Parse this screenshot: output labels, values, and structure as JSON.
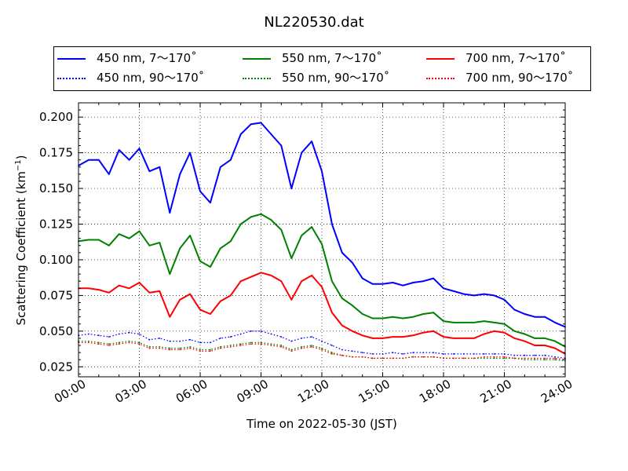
{
  "chart_data": {
    "type": "line",
    "title": "NL220530.dat",
    "xlabel": "Time on 2022-05-30 (JST)",
    "ylabel_main": "Scattering Coefficient (km",
    "ylabel_sup": "−1",
    "ylabel_tail": ")",
    "xlim": [
      "2022-05-30 00:00",
      "2022-05-31 00:00"
    ],
    "ylim": [
      0.018,
      0.21
    ],
    "xticks": [
      "00:00",
      "03:00",
      "06:00",
      "09:00",
      "12:00",
      "15:00",
      "18:00",
      "21:00",
      "24:00"
    ],
    "xtick_hours": [
      0,
      3,
      6,
      9,
      12,
      15,
      18,
      21,
      24
    ],
    "yticks": [
      0.025,
      0.05,
      0.075,
      0.1,
      0.125,
      0.15,
      0.175,
      0.2
    ],
    "ytick_labels": [
      "0.025",
      "0.050",
      "0.075",
      "0.100",
      "0.125",
      "0.150",
      "0.175",
      "0.200"
    ],
    "grid": true,
    "legend_position": "top, outside, 3 columns",
    "x_hours": [
      0,
      0.5,
      1,
      1.5,
      2,
      2.5,
      3,
      3.5,
      4,
      4.5,
      5,
      5.5,
      6,
      6.5,
      7,
      7.5,
      8,
      8.5,
      9,
      9.5,
      10,
      10.5,
      11,
      11.5,
      12,
      12.5,
      13,
      13.5,
      14,
      14.5,
      15,
      15.5,
      16,
      16.5,
      17,
      17.5,
      18,
      18.5,
      19,
      19.5,
      20,
      20.5,
      21,
      21.5,
      22,
      22.5,
      23,
      23.5,
      24
    ],
    "series": [
      {
        "name": "450 nm, 7～170˚",
        "color": "#0000ff",
        "style": "solid",
        "values": [
          0.166,
          0.17,
          0.17,
          0.16,
          0.177,
          0.17,
          0.178,
          0.162,
          0.165,
          0.133,
          0.16,
          0.175,
          0.148,
          0.14,
          0.165,
          0.17,
          0.188,
          0.195,
          0.196,
          0.188,
          0.18,
          0.15,
          0.175,
          0.183,
          0.162,
          0.125,
          0.105,
          0.098,
          0.087,
          0.083,
          0.083,
          0.084,
          0.082,
          0.084,
          0.085,
          0.087,
          0.08,
          0.078,
          0.076,
          0.075,
          0.076,
          0.075,
          0.072,
          0.065,
          0.062,
          0.06,
          0.06,
          0.056,
          0.053
        ]
      },
      {
        "name": "450 nm, 90～170˚",
        "color": "#0000ff",
        "style": "dotted",
        "values": [
          0.047,
          0.048,
          0.047,
          0.046,
          0.048,
          0.049,
          0.048,
          0.044,
          0.045,
          0.043,
          0.043,
          0.044,
          0.042,
          0.042,
          0.045,
          0.046,
          0.048,
          0.05,
          0.05,
          0.048,
          0.046,
          0.043,
          0.045,
          0.046,
          0.043,
          0.04,
          0.037,
          0.036,
          0.035,
          0.034,
          0.034,
          0.035,
          0.034,
          0.035,
          0.035,
          0.035,
          0.034,
          0.034,
          0.034,
          0.034,
          0.034,
          0.034,
          0.034,
          0.033,
          0.033,
          0.033,
          0.033,
          0.032,
          0.031
        ]
      },
      {
        "name": "550 nm, 7～170˚",
        "color": "#008000",
        "style": "solid",
        "values": [
          0.113,
          0.114,
          0.114,
          0.11,
          0.118,
          0.115,
          0.12,
          0.11,
          0.112,
          0.09,
          0.108,
          0.117,
          0.099,
          0.095,
          0.108,
          0.113,
          0.125,
          0.13,
          0.132,
          0.128,
          0.121,
          0.101,
          0.117,
          0.123,
          0.111,
          0.085,
          0.073,
          0.068,
          0.062,
          0.059,
          0.059,
          0.06,
          0.059,
          0.06,
          0.062,
          0.063,
          0.057,
          0.056,
          0.056,
          0.056,
          0.057,
          0.056,
          0.055,
          0.05,
          0.048,
          0.045,
          0.045,
          0.043,
          0.039
        ]
      },
      {
        "name": "550 nm, 90～170˚",
        "color": "#008000",
        "style": "dotted",
        "values": [
          0.043,
          0.043,
          0.042,
          0.041,
          0.042,
          0.043,
          0.042,
          0.039,
          0.039,
          0.038,
          0.038,
          0.039,
          0.037,
          0.037,
          0.039,
          0.04,
          0.041,
          0.042,
          0.042,
          0.041,
          0.04,
          0.037,
          0.039,
          0.04,
          0.038,
          0.035,
          0.033,
          0.032,
          0.032,
          0.031,
          0.031,
          0.031,
          0.031,
          0.032,
          0.032,
          0.032,
          0.031,
          0.031,
          0.031,
          0.031,
          0.031,
          0.031,
          0.031,
          0.031,
          0.03,
          0.03,
          0.03,
          0.03,
          0.029
        ]
      },
      {
        "name": "700 nm, 7～170˚",
        "color": "#ff0000",
        "style": "solid",
        "values": [
          0.08,
          0.08,
          0.079,
          0.077,
          0.082,
          0.08,
          0.084,
          0.077,
          0.078,
          0.06,
          0.072,
          0.076,
          0.065,
          0.062,
          0.071,
          0.075,
          0.085,
          0.088,
          0.091,
          0.089,
          0.085,
          0.072,
          0.085,
          0.089,
          0.081,
          0.063,
          0.054,
          0.05,
          0.047,
          0.045,
          0.045,
          0.046,
          0.046,
          0.047,
          0.049,
          0.05,
          0.046,
          0.045,
          0.045,
          0.045,
          0.048,
          0.05,
          0.049,
          0.045,
          0.043,
          0.04,
          0.04,
          0.038,
          0.034
        ]
      },
      {
        "name": "700 nm, 90～170˚",
        "color": "#ff0000",
        "style": "dotted",
        "values": [
          0.042,
          0.042,
          0.041,
          0.04,
          0.041,
          0.042,
          0.041,
          0.038,
          0.038,
          0.037,
          0.037,
          0.038,
          0.036,
          0.036,
          0.038,
          0.039,
          0.04,
          0.041,
          0.041,
          0.04,
          0.039,
          0.036,
          0.038,
          0.039,
          0.037,
          0.034,
          0.033,
          0.032,
          0.032,
          0.031,
          0.031,
          0.031,
          0.031,
          0.032,
          0.032,
          0.032,
          0.031,
          0.031,
          0.031,
          0.031,
          0.032,
          0.032,
          0.032,
          0.031,
          0.031,
          0.031,
          0.031,
          0.031,
          0.03
        ]
      }
    ]
  }
}
